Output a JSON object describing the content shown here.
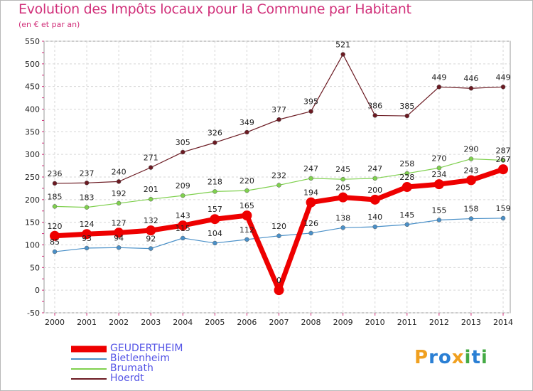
{
  "title": "Evolution des Impôts locaux pour la Commune par Habitant",
  "subtitle": "(en € et par an)",
  "logo": {
    "text": "Proxiti",
    "letters": [
      "P",
      "r",
      "o",
      "x",
      "i",
      "t",
      "i"
    ],
    "colors": [
      "#f0a020",
      "#2a7fd4",
      "#2a7fd4",
      "#f0a020",
      "#44aa44",
      "#2a7fd4",
      "#44aa44"
    ]
  },
  "chart_data": {
    "type": "line",
    "x": [
      "2000",
      "2001",
      "2002",
      "2003",
      "2004",
      "2005",
      "2006",
      "2007",
      "2008",
      "2009",
      "2010",
      "2011",
      "2012",
      "2013",
      "2014"
    ],
    "ylim": [
      -50,
      550
    ],
    "yticks": [
      -50,
      0,
      50,
      100,
      150,
      200,
      250,
      300,
      350,
      400,
      450,
      500,
      550
    ],
    "grid": true,
    "legend_position": "bottom-left",
    "series": [
      {
        "name": "Hoerdt",
        "color": "#6b1a22",
        "values": [
          236,
          237,
          240,
          271,
          305,
          326,
          349,
          377,
          395,
          521,
          386,
          385,
          449,
          446,
          449
        ],
        "labels": [
          "236",
          "237",
          "240",
          "271",
          "305",
          "326",
          "349",
          "377",
          "395",
          "521",
          "386",
          "385",
          "449",
          "446",
          "449"
        ]
      },
      {
        "name": "Brumath",
        "color": "#7fd04e",
        "values": [
          185,
          183,
          192,
          201,
          209,
          218,
          220,
          232,
          247,
          245,
          247,
          258,
          270,
          290,
          287
        ],
        "labels": [
          "185",
          "183",
          "192",
          "201",
          "209",
          "218",
          "220",
          "232",
          "247",
          "245",
          "247",
          "258",
          "270",
          "290",
          "287"
        ]
      },
      {
        "name": "Bietlenheim",
        "color": "#4a90c8",
        "values": [
          85,
          93,
          94,
          92,
          115,
          104,
          112,
          120,
          126,
          138,
          140,
          145,
          155,
          158,
          159
        ],
        "labels": [
          "85",
          "93",
          "94",
          "92",
          "115",
          "104",
          "112",
          "120",
          "126",
          "138",
          "140",
          "145",
          "155",
          "158",
          "159"
        ]
      },
      {
        "name": "GEUDERTHEIM",
        "color": "#ee0000",
        "values": [
          120,
          124,
          127,
          132,
          143,
          157,
          165,
          0,
          194,
          205,
          200,
          228,
          234,
          243,
          267
        ],
        "labels": [
          "120",
          "124",
          "127",
          "132",
          "143",
          "157",
          "165",
          "0",
          "194",
          "205",
          "200",
          "228",
          "234",
          "243",
          "267"
        ]
      }
    ]
  }
}
